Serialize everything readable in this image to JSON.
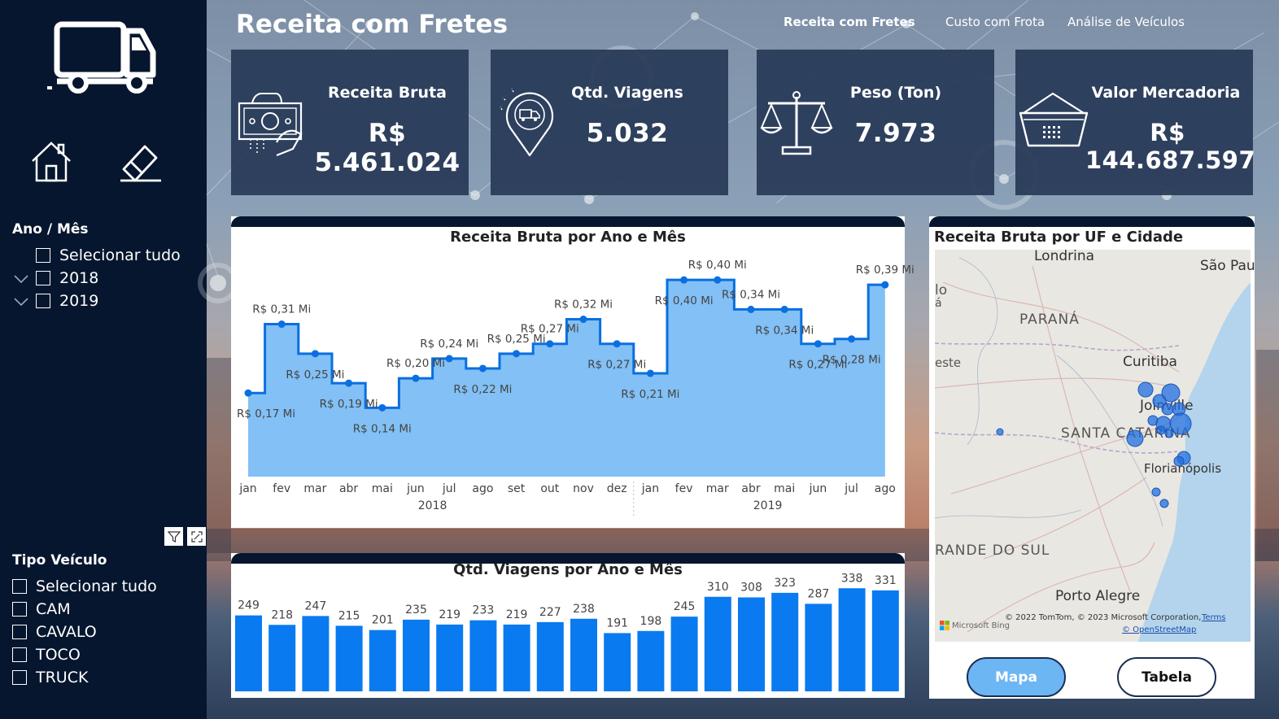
{
  "header": {
    "title": "Receita com Fretes",
    "tabs": [
      {
        "label": "Receita com Fretes",
        "active": true
      },
      {
        "label": "Custo com Frota",
        "active": false
      },
      {
        "label": "Análise de Veículos",
        "active": false
      }
    ]
  },
  "sidebar": {
    "year_slicer": {
      "title": "Ano / Mês",
      "items": [
        "Selecionar tudo",
        "2018",
        "2019"
      ]
    },
    "vehicle_slicer": {
      "title": "Tipo Veículo",
      "items": [
        "Selecionar tudo",
        "CAM",
        "CAVALO",
        "TOCO",
        "TRUCK"
      ]
    },
    "icons": [
      "truck-icon",
      "home-icon",
      "eraser-icon",
      "filter-icon",
      "focus-mode-icon"
    ]
  },
  "kpis": [
    {
      "label": "Receita Bruta",
      "value": "R$ 5.461.024",
      "icon": "money-hand-icon"
    },
    {
      "label": "Qtd. Viagens",
      "value": "5.032",
      "icon": "location-truck-icon"
    },
    {
      "label": "Peso (Ton)",
      "value": "7.973",
      "icon": "scale-icon"
    },
    {
      "label": "Valor Mercadoria",
      "value": "R$ 144.687.597",
      "icon": "basket-icon"
    }
  ],
  "revenue_chart": {
    "title": "Receita Bruta por Ano e Mês",
    "months": [
      "jan",
      "fev",
      "mar",
      "abr",
      "mai",
      "jun",
      "jul",
      "ago",
      "set",
      "out",
      "nov",
      "dez",
      "jan",
      "fev",
      "mar",
      "abr",
      "mai",
      "jun",
      "jul",
      "ago"
    ],
    "years": [
      "2018",
      "2019"
    ]
  },
  "trips_chart": {
    "title": "Qtd. Viagens por Ano e Mês"
  },
  "map": {
    "title": "Receita Bruta por UF e Cidade",
    "labels": [
      "Londrina",
      "São Pau",
      "lo",
      "á",
      "PARANÁ",
      "este",
      "Curitiba",
      "Joinville",
      "SANTA CATARINA",
      "Florianópolis",
      "RANDE DO SUL",
      "Porto Alegre"
    ],
    "credit": "© 2022 TomTom, © 2023 Microsoft Corporation,",
    "terms": "Terms",
    "osm": "© OpenStreetMap",
    "bing": "Microsoft Bing",
    "buttons": {
      "map": "Mapa",
      "table": "Tabela"
    }
  },
  "colors": {
    "sidebar": "#06162e",
    "kpi_card": "#263856",
    "area_fill": "#82c0f5",
    "line": "#0a6fe0",
    "bar": "#0a7af0",
    "map_bubble": "#1f6fe0",
    "map_button_active": "#6cb6f4"
  },
  "chart_data": [
    {
      "type": "area",
      "title": "Receita Bruta por Ano e Mês",
      "categories": [
        "jan 2018",
        "fev 2018",
        "mar 2018",
        "abr 2018",
        "mai 2018",
        "jun 2018",
        "jul 2018",
        "ago 2018",
        "set 2018",
        "out 2018",
        "nov 2018",
        "dez 2018",
        "jan 2019",
        "fev 2019",
        "mar 2019",
        "abr 2019",
        "mai 2019",
        "jun 2019",
        "jul 2019",
        "ago 2019"
      ],
      "values": [
        0.17,
        0.31,
        0.25,
        0.19,
        0.14,
        0.2,
        0.24,
        0.22,
        0.25,
        0.27,
        0.32,
        0.27,
        0.21,
        0.4,
        0.4,
        0.34,
        0.34,
        0.27,
        0.28,
        0.39
      ],
      "data_labels": [
        "R$ 0,17 Mi",
        "R$ 0,31 Mi",
        "R$ 0,25 Mi",
        "R$ 0,19 Mi",
        "R$ 0,14 Mi",
        "R$ 0,20 Mi",
        "R$ 0,24 Mi",
        "R$ 0,22 Mi",
        "R$ 0,25 Mi",
        "R$ 0,27 Mi",
        "R$ 0,32 Mi",
        "R$ 0,27 Mi",
        "R$ 0,21 Mi",
        "R$ 0,40 Mi",
        "R$ 0,40 Mi",
        "R$ 0,34 Mi",
        "R$ 0,34 Mi",
        "R$ 0,27 Mi",
        "R$ 0,28 Mi",
        "R$ 0,39 Mi"
      ],
      "ylim": [
        0,
        0.43
      ],
      "grid": false,
      "step": true
    },
    {
      "type": "bar",
      "title": "Qtd. Viagens por Ano e Mês",
      "values": [
        249,
        218,
        247,
        215,
        201,
        235,
        219,
        233,
        219,
        227,
        238,
        191,
        198,
        245,
        310,
        308,
        323,
        287,
        338,
        331
      ],
      "ylim": [
        0,
        400
      ],
      "grid": false
    }
  ]
}
